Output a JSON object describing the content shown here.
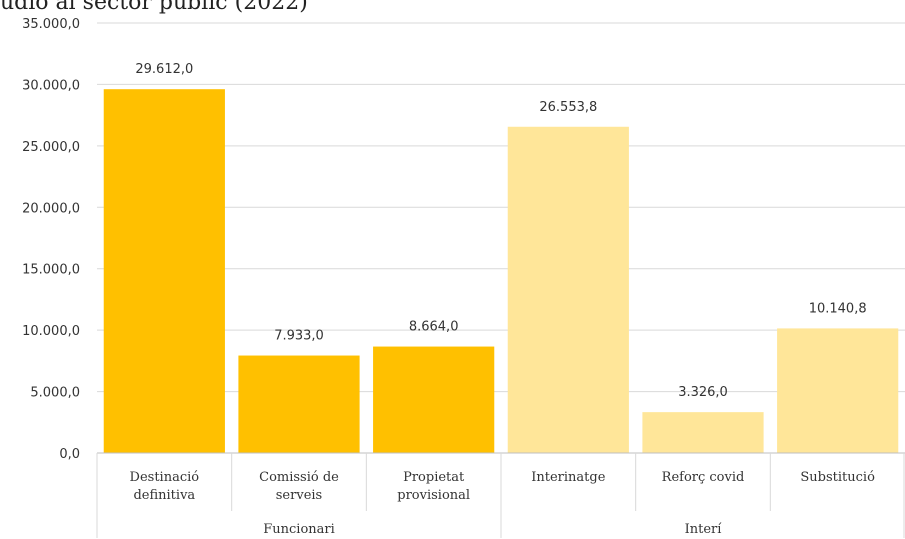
{
  "chart_data": {
    "type": "bar",
    "title": "udio al sector públic (2022)",
    "ylim": [
      0,
      35000
    ],
    "y_ticks": [
      "0,0",
      "5.000,0",
      "10.000,0",
      "15.000,0",
      "20.000,0",
      "25.000,0",
      "30.000,0",
      "35.000,0"
    ],
    "y_tick_values": [
      0,
      5000,
      10000,
      15000,
      20000,
      25000,
      30000,
      35000
    ],
    "grid": true,
    "categories": [
      [
        "Destinació",
        "definitiva"
      ],
      [
        "Comissió de",
        "serveis"
      ],
      [
        "Propietat",
        "provisional"
      ],
      [
        "Interinatge"
      ],
      [
        "Reforç covid"
      ],
      [
        "Substitució"
      ]
    ],
    "values": [
      29612.0,
      7933.0,
      8664.0,
      26553.8,
      3326.0,
      10140.8
    ],
    "data_labels": [
      "29.612,0",
      "7.933,0",
      "8.664,0",
      "26.553,8",
      "3.326,0",
      "10.140,8"
    ],
    "groups": [
      {
        "name": "Funcionari",
        "count": 3,
        "color": "#ffc000"
      },
      {
        "name": "Interí",
        "count": 3,
        "color": "#ffe699"
      }
    ]
  }
}
